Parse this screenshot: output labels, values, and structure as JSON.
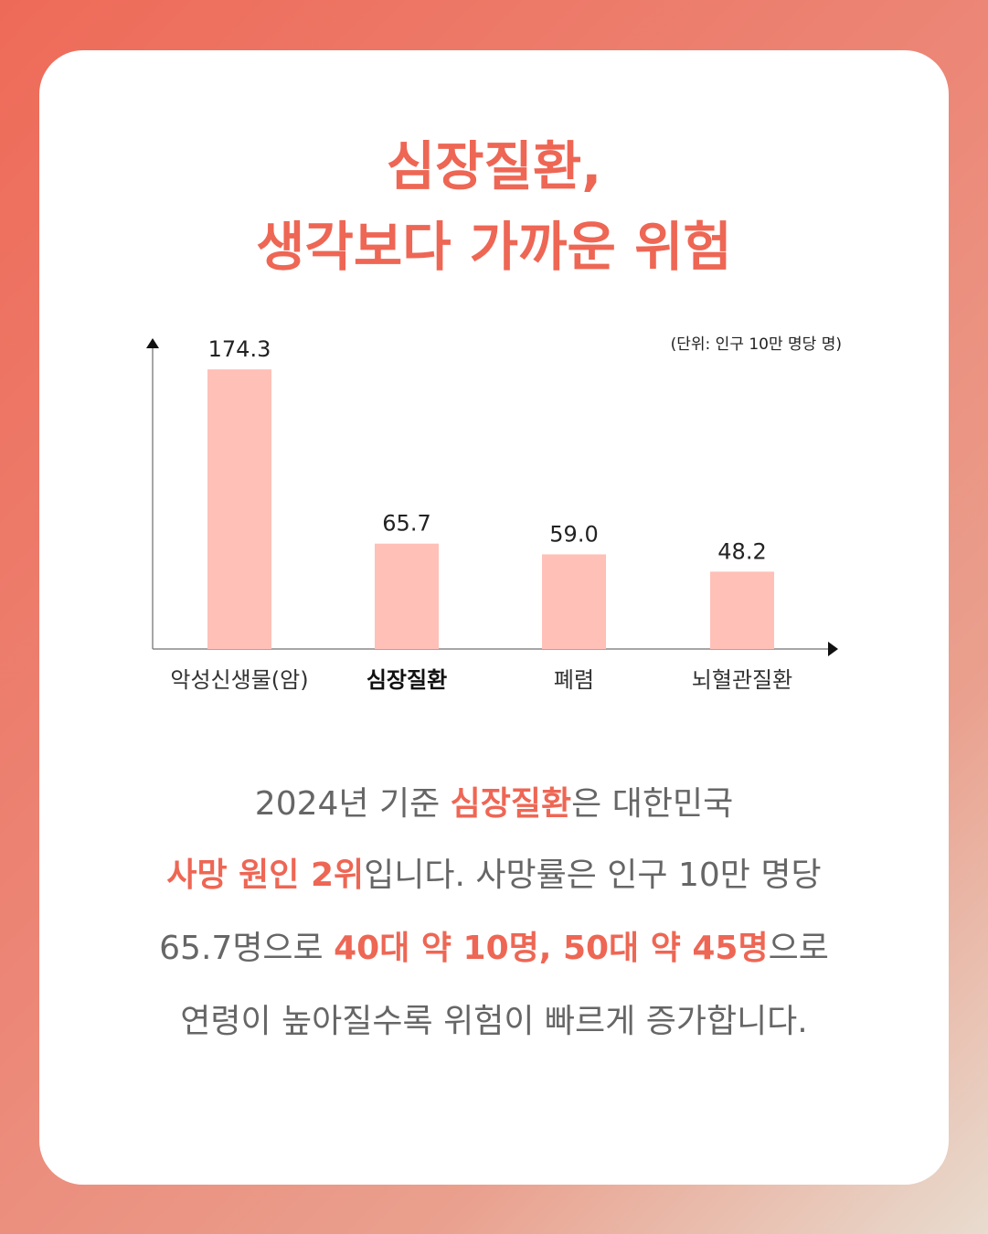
{
  "title": {
    "line1": "심장질환,",
    "line2": "생각보다 가까운 위험"
  },
  "chart_data": {
    "type": "bar",
    "unit_label": "(단위: 인구 10만 명당 명)",
    "categories": [
      "악성신생물(암)",
      "심장질환",
      "폐렴",
      "뇌혈관질환"
    ],
    "values": [
      174.3,
      65.7,
      59.0,
      48.2
    ],
    "value_labels": [
      "174.3",
      "65.7",
      "59.0",
      "48.2"
    ],
    "highlight_category": "심장질환",
    "ylim": [
      0,
      200
    ],
    "grid": false,
    "bar_color": "#ffc0b8"
  },
  "description": {
    "line1": {
      "a": "2024년 기준 ",
      "b": "심장질환",
      "c": "은 대한민국"
    },
    "line2": {
      "a": "사망 원인 2위",
      "b": "입니다. 사망률은 인구 10만 명당"
    },
    "line3": {
      "a": "65.7명으로 ",
      "b": "40대 약 10명, 50대 약 45명",
      "c": "으로"
    },
    "line4": "연령이 높아질수록 위험이 빠르게 증가합니다."
  },
  "colors": {
    "accent": "#ee6654",
    "bar": "#ffc0b8",
    "body_text": "#666666"
  }
}
